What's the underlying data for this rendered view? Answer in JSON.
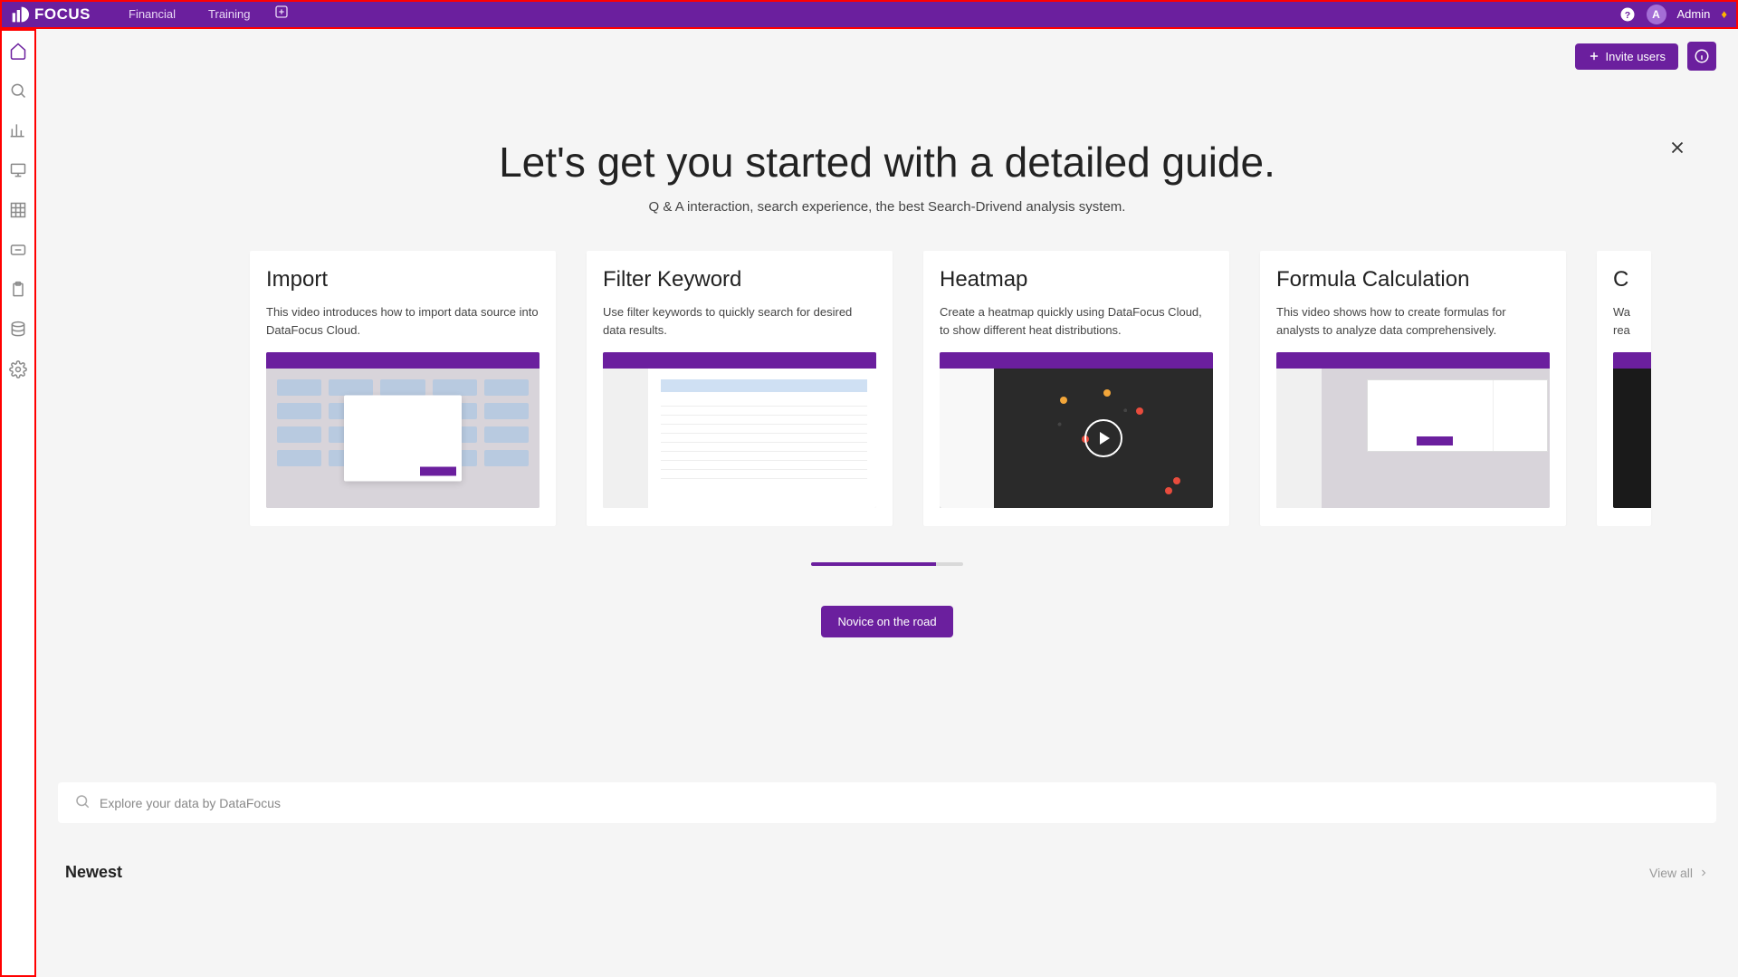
{
  "colors": {
    "primary": "#6b1f9e",
    "background": "#f5f5f5",
    "card_bg": "#ffffff",
    "text": "#222222",
    "muted": "#888888"
  },
  "header": {
    "brand": "FOCUS",
    "tabs": [
      {
        "label": "Financial"
      },
      {
        "label": "Training"
      }
    ],
    "user": {
      "initial": "A",
      "name": "Admin"
    }
  },
  "sidebar": {
    "items": [
      {
        "name": "home",
        "active": true
      },
      {
        "name": "search"
      },
      {
        "name": "chart"
      },
      {
        "name": "presentation"
      },
      {
        "name": "table"
      },
      {
        "name": "resource"
      },
      {
        "name": "clipboard"
      },
      {
        "name": "database"
      },
      {
        "name": "settings"
      }
    ]
  },
  "actionbar": {
    "invite_label": "Invite users"
  },
  "guide": {
    "title": "Let's get you started with a detailed guide.",
    "subtitle": "Q & A interaction, search experience, the best Search-Drivend analysis system.",
    "cards": [
      {
        "title": "Import",
        "desc": "This video introduces how to import data source into DataFocus Cloud."
      },
      {
        "title": "Filter Keyword",
        "desc": "Use filter keywords to quickly search for desired data results."
      },
      {
        "title": "Heatmap",
        "desc": "Create a heatmap quickly using DataFocus Cloud, to show different heat distributions."
      },
      {
        "title": "Formula Calculation",
        "desc": "This video shows how to create formulas for analysts to analyze data comprehensively."
      },
      {
        "title": "C",
        "desc": "Wa\nrea"
      }
    ],
    "progress_percent": 82,
    "cta_label": "Novice on the road"
  },
  "explore": {
    "placeholder": "Explore your data by DataFocus"
  },
  "newest": {
    "title": "Newest",
    "view_all_label": "View all"
  }
}
